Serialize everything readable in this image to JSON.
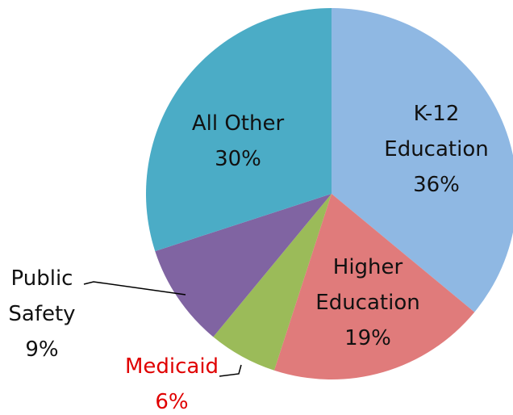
{
  "chart_data": {
    "type": "pie",
    "categories": [
      "K-12 Education",
      "Higher Education",
      "Medicaid",
      "Public Safety",
      "All Other"
    ],
    "values": [
      36,
      19,
      6,
      9,
      30
    ],
    "value_labels": [
      "36%",
      "19%",
      "6%",
      "9%",
      "30%"
    ],
    "colors": [
      "#8fb8e3",
      "#e07b7b",
      "#9bbb59",
      "#8064a2",
      "#4bacc6"
    ]
  }
}
